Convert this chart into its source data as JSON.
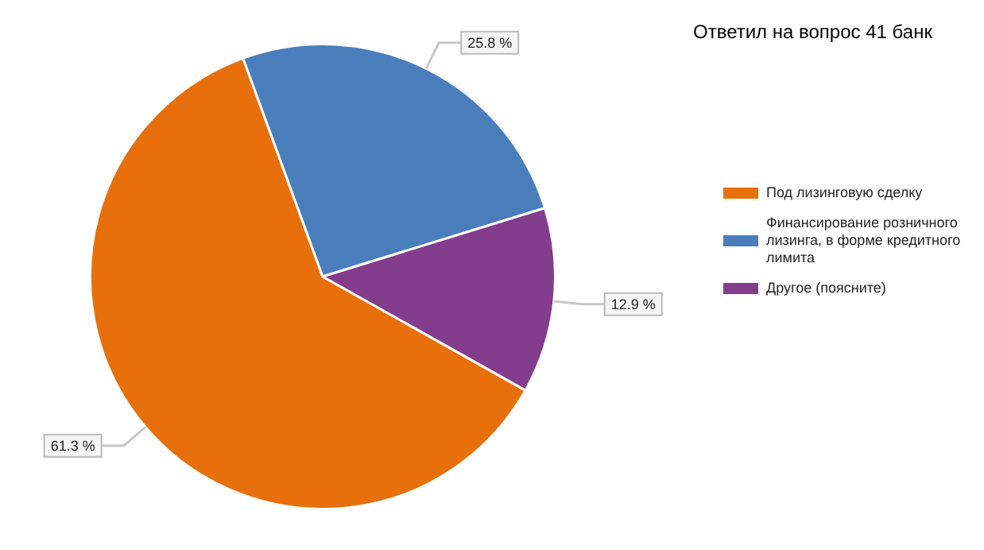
{
  "chart_data": {
    "type": "pie",
    "title": "Ответил на вопрос 41 банк",
    "categories": [
      "Под лизинговую сделку",
      "Финансирование розничного лизинга, в форме кредитного лимита",
      "Другое (поясните)"
    ],
    "values": [
      61.3,
      25.8,
      12.9
    ],
    "colors": [
      "#e8700c",
      "#4a7ebb",
      "#843c8c"
    ],
    "value_labels": [
      "61.3 %",
      "25.8 %",
      "12.9 %"
    ],
    "legend": "right"
  }
}
